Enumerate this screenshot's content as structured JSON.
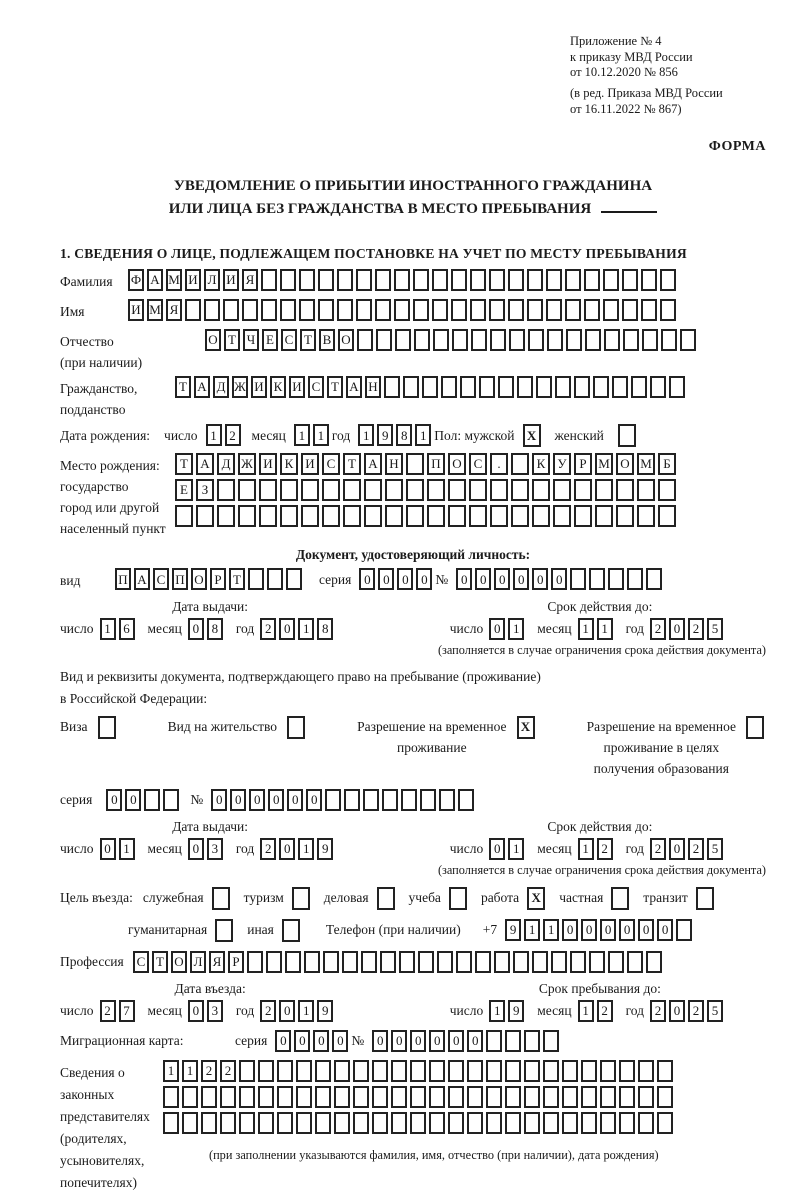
{
  "page": {
    "annex": [
      "Приложение № 4",
      "к приказу МВД России",
      "от 10.12.2020 № 856"
    ],
    "annex_note": [
      "(в ред. Приказа МВД России",
      "от 16.11.2022 № 867)"
    ],
    "forma": "ФОРМА",
    "title1": "УВЕДОМЛЕНИЕ О ПРИБЫТИИ ИНОСТРАННОГО ГРАЖДАНИНА",
    "title2": "ИЛИ ЛИЦА БЕЗ ГРАЖДАНСТВА В МЕСТО ПРЕБЫВАНИЯ",
    "section1": "1. СВЕДЕНИЯ О ЛИЦЕ, ПОДЛЕЖАЩЕМ ПОСТАНОВКЕ НА УЧЕТ ПО МЕСТУ ПРЕБЫВАНИЯ"
  },
  "person": {
    "surname": {
      "label": "Фамилия",
      "value": "ФАМИЛИЯ",
      "cells": 29
    },
    "given_name": {
      "label": "Имя",
      "value": "ИМЯ",
      "cells": 29
    },
    "patronymic": {
      "label1": "Отчество",
      "label2": "(при наличии)",
      "value": "ОТЧЕСТВО",
      "cells": 26
    },
    "citizenship": {
      "label1": "Гражданство,",
      "label2": "подданство",
      "value": "ТАДЖИКИСТАН",
      "cells": 27
    },
    "birth_date": {
      "label": "Дата рождения:",
      "day_label": "число",
      "day": "12",
      "month_label": "месяц",
      "month": "11",
      "year_label": "год",
      "year": "1981"
    },
    "sex": {
      "label": "Пол: мужской",
      "male_checked": "X",
      "female_label": "женский",
      "female_checked": ""
    },
    "birth_place": {
      "labels": [
        "Место рождения:",
        "государство",
        "город или другой",
        "населенный пункт"
      ],
      "rows": [
        {
          "value": "ТАДЖИКИСТАН ПОС. КУРМОМБ",
          "cells": 24
        },
        {
          "value": "ЕЗ",
          "cells": 24
        },
        {
          "value": "",
          "cells": 24
        }
      ]
    }
  },
  "identity_doc": {
    "header": "Документ, удостоверяющий личность:",
    "type_label": "вид",
    "type": {
      "value": "ПАСПОРТ",
      "cells": 10
    },
    "series_label": "серия",
    "series": {
      "value": "0000",
      "cells": 4
    },
    "number_label": "№",
    "number": {
      "value": "000000",
      "cells": 11
    },
    "issue": {
      "header": "Дата выдачи:",
      "day_label": "число",
      "day": "16",
      "month_label": "месяц",
      "month": "08",
      "year_label": "год",
      "year": "2018"
    },
    "valid": {
      "header": "Срок действия до:",
      "day_label": "число",
      "day": "01",
      "month_label": "месяц",
      "month": "11",
      "year_label": "год",
      "year": "2025"
    },
    "valid_note": "(заполняется в случае ограничения срока действия документа)"
  },
  "residence_doc": {
    "intro1": "Вид и реквизиты документа, подтверждающего право на пребывание (проживание)",
    "intro2": "в Российской Федерации:",
    "visa_label": "Виза",
    "visa_checked": "",
    "permit_label": "Вид на жительство",
    "permit_checked": "",
    "temp_label1": "Разрешение на временное",
    "temp_label2": "проживание",
    "temp_checked": "X",
    "edu_label1": "Разрешение на временное",
    "edu_label2": "проживание в целях",
    "edu_label3": "получения образования",
    "edu_checked": "",
    "series_label": "серия",
    "series": {
      "value": "00",
      "cells": 4
    },
    "number_label": "№",
    "number": {
      "value": "000000",
      "cells": 14
    },
    "issue": {
      "header": "Дата выдачи:",
      "day_label": "число",
      "day": "01",
      "month_label": "месяц",
      "month": "03",
      "year_label": "год",
      "year": "2019"
    },
    "valid": {
      "header": "Срок действия до:",
      "day_label": "число",
      "day": "01",
      "month_label": "месяц",
      "month": "12",
      "year_label": "год",
      "year": "2025"
    },
    "valid_note": "(заполняется в случае ограничения срока действия документа)"
  },
  "visit": {
    "purpose_label": "Цель въезда:",
    "purposes": [
      {
        "label": "служебная",
        "checked": ""
      },
      {
        "label": "туризм",
        "checked": ""
      },
      {
        "label": "деловая",
        "checked": ""
      },
      {
        "label": "учеба",
        "checked": ""
      },
      {
        "label": "работа",
        "checked": "X"
      },
      {
        "label": "частная",
        "checked": ""
      },
      {
        "label": "транзит",
        "checked": ""
      }
    ],
    "purposes2": [
      {
        "label": "гуманитарная",
        "checked": ""
      },
      {
        "label": "иная",
        "checked": ""
      }
    ],
    "phone_label": "Телефон (при наличии)",
    "phone_prefix": "+7",
    "phone": {
      "value": "911000000",
      "cells": 10
    },
    "profession_label": "Профессия",
    "profession": {
      "value": "СТОЛЯР",
      "cells": 28
    },
    "entry": {
      "header": "Дата въезда:",
      "day_label": "число",
      "day": "27",
      "month_label": "месяц",
      "month": "03",
      "year_label": "год",
      "year": "2019"
    },
    "stay": {
      "header": "Срок пребывания до:",
      "day_label": "число",
      "day": "19",
      "month_label": "месяц",
      "month": "12",
      "year_label": "год",
      "year": "2025"
    },
    "migration_label": "Миграционная карта:",
    "migration_series_label": "серия",
    "migration_series": {
      "value": "0000",
      "cells": 4
    },
    "migration_number_label": "№",
    "migration_number": {
      "value": "000000",
      "cells": 10
    }
  },
  "representatives": {
    "labels": [
      "Сведения о",
      "законных",
      "представителях",
      "(родителях,",
      "усыновителях,",
      "попечителях)"
    ],
    "rows": [
      {
        "value": "1122",
        "cells": 27
      },
      {
        "value": "",
        "cells": 27
      },
      {
        "value": "",
        "cells": 27
      }
    ],
    "note": "(при заполнении указываются фамилия, имя, отчество (при наличии), дата рождения)"
  },
  "colors": {
    "ink": "#1a1a1a",
    "paper": "#ffffff"
  }
}
